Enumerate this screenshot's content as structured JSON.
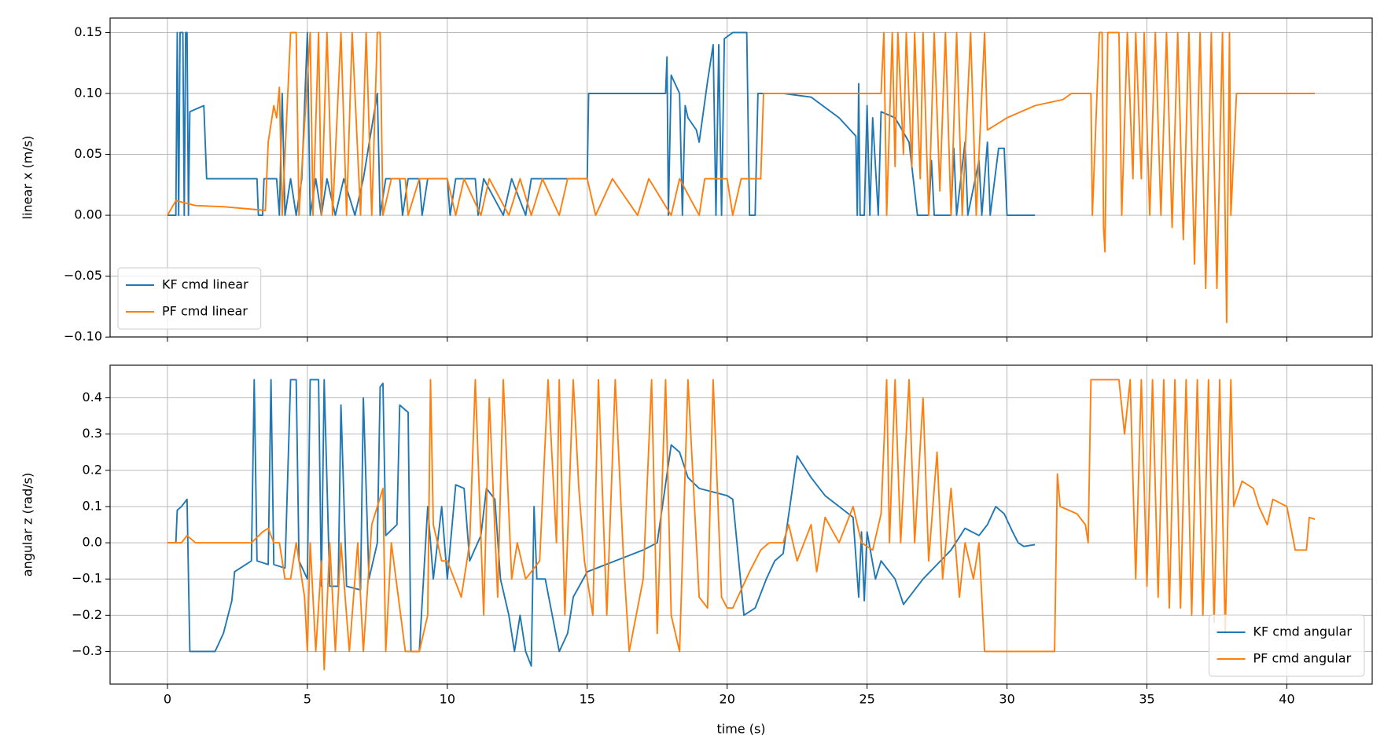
{
  "chart_data": [
    {
      "type": "line",
      "ylabel": "linear x (m/s)",
      "legend": "lower left",
      "grid": true,
      "xlim": [
        -2.05,
        43.05
      ],
      "xticks": [
        0,
        5,
        10,
        15,
        20,
        25,
        30,
        35,
        40
      ],
      "ylim": [
        -0.0999,
        0.1619
      ],
      "yticks": [
        {
          "value": -0.1,
          "label": "−0.10"
        },
        {
          "value": -0.05,
          "label": "−0.05"
        },
        {
          "value": 0,
          "label": "0.00"
        },
        0.05,
        {
          "value": 0.1,
          "label": "0.10"
        },
        0.15
      ],
      "series": [
        {
          "name": "KF cmd linear",
          "color": "#1f77b4",
          "x": [
            0,
            0.3,
            0.35,
            0.4,
            0.45,
            0.55,
            0.6,
            0.65,
            0.7,
            0.75,
            0.8,
            1.3,
            1.4,
            3.2,
            3.25,
            3.4,
            3.45,
            3.9,
            4.0,
            4.1,
            4.2,
            4.4,
            4.6,
            4.8,
            5.0,
            5.1,
            5.3,
            5.5,
            5.7,
            6.0,
            6.3,
            6.7,
            7.0,
            7.5,
            7.6,
            7.8,
            8.3,
            8.4,
            8.6,
            9.0,
            9.1,
            9.3,
            10.0,
            10.1,
            10.3,
            11.0,
            11.1,
            11.3,
            12.0,
            12.3,
            12.8,
            13.0,
            15.0,
            15.05,
            17.8,
            17.85,
            17.9,
            18.0,
            18.3,
            18.4,
            18.5,
            18.6,
            18.9,
            19.0,
            19.3,
            19.5,
            19.6,
            19.7,
            19.8,
            19.9,
            20.2,
            20.7,
            20.8,
            21.0,
            21.1,
            22.0,
            23.0,
            24.0,
            24.6,
            24.65,
            24.7,
            24.75,
            24.9,
            25.0,
            25.1,
            25.2,
            25.4,
            25.5,
            26.0,
            26.5,
            26.8,
            27.2,
            27.3,
            27.4,
            28.0,
            28.1,
            28.2,
            28.5,
            28.6,
            29.0,
            29.1,
            29.3,
            29.4,
            29.7,
            29.9,
            30.0,
            31.0
          ],
          "values": [
            0,
            0,
            0.15,
            0,
            0.15,
            0.15,
            0,
            0.15,
            0.15,
            0,
            0.085,
            0.09,
            0.03,
            0.03,
            0,
            0,
            0.03,
            0.03,
            0,
            0.1,
            0,
            0.03,
            0,
            0.03,
            0.15,
            0,
            0.03,
            0,
            0.03,
            0,
            0.03,
            0,
            0.03,
            0.1,
            0,
            0.03,
            0.03,
            0,
            0.03,
            0.03,
            0,
            0.03,
            0.03,
            0,
            0.03,
            0.03,
            0,
            0.03,
            0,
            0.03,
            0,
            0.03,
            0.03,
            0.1,
            0.1,
            0.13,
            0,
            0.115,
            0.1,
            0,
            0.09,
            0.08,
            0.07,
            0.06,
            0.11,
            0.14,
            0,
            0.14,
            0,
            0.145,
            0.15,
            0.15,
            0,
            0,
            0.1,
            0.1,
            0.097,
            0.08,
            0.065,
            0,
            0.108,
            0,
            0,
            0.09,
            0,
            0.08,
            0,
            0.085,
            0.08,
            0.06,
            0,
            0,
            0.045,
            0,
            0,
            0.055,
            0,
            0.06,
            0,
            0.045,
            0,
            0.06,
            0,
            0.055,
            0.055,
            0,
            0
          ]
        },
        {
          "name": "PF cmd linear",
          "color": "#ff7f0e",
          "x": [
            0,
            0.3,
            1,
            2,
            3.5,
            3.6,
            3.8,
            3.9,
            4.0,
            4.1,
            4.4,
            4.6,
            4.7,
            5.1,
            5.2,
            5.4,
            5.5,
            5.7,
            5.9,
            6.2,
            6.4,
            6.6,
            6.9,
            7.1,
            7.3,
            7.5,
            7.6,
            7.7,
            8.0,
            8.5,
            8.6,
            9.0,
            10.0,
            10.3,
            10.6,
            11.2,
            11.5,
            12.2,
            12.6,
            13.0,
            13.4,
            14.0,
            14.3,
            15.0,
            15.3,
            15.9,
            16.8,
            17.2,
            18.0,
            18.3,
            19.0,
            19.2,
            20.0,
            20.2,
            20.5,
            21.2,
            21.3,
            25.5,
            25.6,
            25.7,
            25.9,
            26.0,
            26.1,
            26.3,
            26.4,
            26.6,
            26.7,
            26.9,
            27.0,
            27.2,
            27.4,
            27.6,
            27.8,
            28.0,
            28.2,
            28.4,
            28.7,
            28.9,
            29.2,
            29.3,
            30,
            31,
            32,
            32.3,
            33.0,
            33.05,
            33.3,
            33.4,
            33.45,
            33.5,
            33.6,
            34.0,
            34.1,
            34.3,
            34.5,
            34.6,
            34.8,
            34.9,
            35.1,
            35.3,
            35.5,
            35.7,
            35.9,
            36.1,
            36.3,
            36.5,
            36.7,
            36.9,
            37.1,
            37.3,
            37.5,
            37.7,
            37.85,
            37.95,
            38.0,
            38.2,
            41.0
          ],
          "values": [
            0,
            0.012,
            0.008,
            0.007,
            0.004,
            0.06,
            0.09,
            0.08,
            0.105,
            0,
            0.15,
            0.15,
            0,
            0.15,
            0,
            0.15,
            0,
            0.15,
            0,
            0.15,
            0,
            0.15,
            0,
            0.15,
            0,
            0.15,
            0.15,
            0,
            0.03,
            0.03,
            0,
            0.03,
            0.03,
            0,
            0.03,
            0,
            0.03,
            0,
            0.03,
            0,
            0.03,
            0,
            0.03,
            0.03,
            0,
            0.03,
            0,
            0.03,
            0,
            0.03,
            0,
            0.03,
            0.03,
            0,
            0.03,
            0.03,
            0.1,
            0.1,
            0.15,
            0,
            0.15,
            0.04,
            0.15,
            0.05,
            0.15,
            0.04,
            0.15,
            0.03,
            0.15,
            0,
            0.15,
            0.02,
            0.15,
            0,
            0.15,
            0,
            0.15,
            0,
            0.15,
            0.07,
            0.08,
            0.09,
            0.095,
            0.1,
            0.1,
            0,
            0.15,
            0.15,
            -0.01,
            -0.03,
            0.15,
            0.15,
            0,
            0.15,
            0.03,
            0.15,
            0.03,
            0.15,
            0,
            0.15,
            0,
            0.15,
            -0.01,
            0.15,
            -0.02,
            0.15,
            -0.04,
            0.15,
            -0.06,
            0.15,
            -0.06,
            0.15,
            -0.088,
            0.15,
            0,
            0.1,
            0.1
          ]
        }
      ]
    },
    {
      "type": "line",
      "ylabel": "angular z (rad/s)",
      "xlabel": "time (s)",
      "legend": "lower right",
      "grid": true,
      "xlim": [
        -2.05,
        43.05
      ],
      "xticks": [
        0,
        5,
        10,
        15,
        20,
        25,
        30,
        35,
        40
      ],
      "ylim": [
        -0.39,
        0.49
      ],
      "yticks": [
        {
          "value": -0.3,
          "label": "−0.3"
        },
        {
          "value": -0.2,
          "label": "−0.2"
        },
        {
          "value": -0.1,
          "label": "−0.1"
        },
        {
          "value": 0,
          "label": "0.0"
        },
        0.1,
        0.2,
        0.3,
        0.4
      ],
      "series": [
        {
          "name": "KF cmd angular",
          "color": "#1f77b4",
          "x": [
            0,
            0.3,
            0.35,
            0.5,
            0.7,
            0.8,
            1.7,
            2.0,
            2.3,
            2.4,
            3.0,
            3.1,
            3.2,
            3.6,
            3.7,
            3.8,
            4.2,
            4.4,
            4.6,
            4.7,
            5.0,
            5.1,
            5.4,
            5.5,
            5.6,
            5.8,
            6.1,
            6.2,
            6.4,
            6.9,
            7.0,
            7.2,
            7.5,
            7.6,
            7.7,
            7.8,
            8.2,
            8.3,
            8.6,
            8.7,
            9.0,
            9.3,
            9.5,
            9.8,
            10.0,
            10.3,
            10.6,
            10.8,
            11.2,
            11.4,
            11.7,
            11.9,
            12.2,
            12.4,
            12.6,
            12.8,
            13.0,
            13.1,
            13.2,
            13.5,
            14.0,
            14.3,
            14.5,
            15.0,
            16.0,
            17.0,
            17.5,
            18.0,
            18.3,
            18.6,
            19.0,
            20.0,
            20.2,
            20.6,
            21.0,
            21.4,
            21.7,
            22.0,
            22.5,
            23.0,
            23.5,
            24.0,
            24.5,
            24.7,
            24.8,
            24.9,
            25.0,
            25.3,
            25.5,
            26.0,
            26.3,
            26.5,
            27.0,
            27.5,
            28.0,
            28.5,
            29.0,
            29.3,
            29.6,
            29.9,
            30.2,
            30.4,
            30.6,
            31.0
          ],
          "values": [
            0,
            0,
            0.09,
            0.1,
            0.12,
            -0.3,
            -0.3,
            -0.25,
            -0.16,
            -0.08,
            -0.05,
            0.45,
            -0.05,
            -0.06,
            0.45,
            -0.06,
            -0.07,
            0.45,
            0.45,
            -0.05,
            -0.1,
            0.45,
            0.45,
            -0.12,
            0.45,
            -0.12,
            -0.12,
            0.38,
            -0.12,
            -0.13,
            0.4,
            -0.1,
            0,
            0.43,
            0.44,
            0.02,
            0.05,
            0.38,
            0.36,
            -0.3,
            -0.3,
            0.1,
            -0.1,
            0.1,
            -0.1,
            0.16,
            0.15,
            -0.05,
            0.02,
            0.15,
            0.12,
            -0.1,
            -0.2,
            -0.3,
            -0.2,
            -0.3,
            -0.34,
            0.1,
            -0.1,
            -0.1,
            -0.3,
            -0.25,
            -0.15,
            -0.08,
            -0.05,
            -0.02,
            0,
            0.27,
            0.25,
            0.18,
            0.15,
            0.13,
            0.12,
            -0.2,
            -0.18,
            -0.1,
            -0.05,
            -0.03,
            0.24,
            0.18,
            0.13,
            0.1,
            0.07,
            -0.15,
            0.03,
            -0.16,
            0.03,
            -0.1,
            -0.05,
            -0.1,
            -0.17,
            -0.15,
            -0.1,
            -0.06,
            -0.02,
            0.04,
            0.02,
            0.05,
            0.1,
            0.08,
            0.03,
            0,
            -0.01,
            -0.005
          ]
        },
        {
          "name": "PF cmd angular",
          "color": "#ff7f0e",
          "x": [
            0,
            0.5,
            0.7,
            1.0,
            3.0,
            3.4,
            3.6,
            3.8,
            4.0,
            4.2,
            4.4,
            4.6,
            4.9,
            5.0,
            5.1,
            5.3,
            5.5,
            5.6,
            5.8,
            6.0,
            6.2,
            6.5,
            6.8,
            7.0,
            7.3,
            7.5,
            7.7,
            7.8,
            8.0,
            8.5,
            9.0,
            9.3,
            9.4,
            9.5,
            9.8,
            10.0,
            10.5,
            10.8,
            11.0,
            11.3,
            11.5,
            11.8,
            12.0,
            12.3,
            12.5,
            12.8,
            13.3,
            13.6,
            13.9,
            14.0,
            14.2,
            14.5,
            14.7,
            14.9,
            15.2,
            15.4,
            15.7,
            16.0,
            16.3,
            16.5,
            17.0,
            17.3,
            17.5,
            17.8,
            18.0,
            18.3,
            18.6,
            19.0,
            19.3,
            19.5,
            19.8,
            20.0,
            20.2,
            20.8,
            21.2,
            21.5,
            22.0,
            22.2,
            22.5,
            23.0,
            23.2,
            23.5,
            24.0,
            24.5,
            24.8,
            25.2,
            25.5,
            25.7,
            25.8,
            26.0,
            26.2,
            26.5,
            26.7,
            27.0,
            27.2,
            27.5,
            27.7,
            28.0,
            28.3,
            28.5,
            28.8,
            29.0,
            29.2,
            31.0,
            31.7,
            31.8,
            31.9,
            32.5,
            32.8,
            32.9,
            33.0,
            34.0,
            34.2,
            34.4,
            34.6,
            34.8,
            35.0,
            35.2,
            35.4,
            35.6,
            35.8,
            36.0,
            36.2,
            36.4,
            36.6,
            36.8,
            37.0,
            37.2,
            37.4,
            37.6,
            37.8,
            38.0,
            38.1,
            38.4,
            38.8,
            39.0,
            39.3,
            39.5,
            40.0,
            40.3,
            40.7,
            40.8,
            41.0
          ],
          "values": [
            0,
            0,
            0.02,
            0,
            0,
            0.03,
            0.04,
            0,
            0,
            -0.1,
            -0.1,
            0,
            -0.15,
            -0.3,
            0,
            -0.3,
            -0.05,
            -0.35,
            0,
            -0.3,
            0,
            -0.3,
            0,
            -0.3,
            0.05,
            0.1,
            0.15,
            -0.3,
            0,
            -0.3,
            -0.3,
            -0.2,
            0.45,
            0.05,
            -0.05,
            -0.05,
            -0.15,
            0,
            0.45,
            -0.2,
            0.4,
            -0.15,
            0.45,
            -0.1,
            0,
            -0.1,
            -0.05,
            0.45,
            0,
            0.45,
            -0.2,
            0.45,
            0.15,
            -0.05,
            -0.2,
            0.45,
            -0.2,
            0.45,
            -0.05,
            -0.3,
            -0.1,
            0.45,
            -0.25,
            0.45,
            -0.2,
            -0.3,
            0.45,
            -0.15,
            -0.18,
            0.45,
            -0.15,
            -0.18,
            -0.18,
            -0.08,
            -0.02,
            0,
            0,
            0.05,
            -0.05,
            0.05,
            -0.08,
            0.07,
            0,
            0.1,
            0,
            -0.02,
            0.08,
            0.45,
            0,
            0.45,
            0,
            0.45,
            0,
            0.4,
            -0.05,
            0.25,
            -0.1,
            0.15,
            -0.15,
            0,
            -0.1,
            0,
            -0.3,
            -0.3,
            -0.3,
            0.19,
            0.1,
            0.08,
            0.05,
            0,
            0.45,
            0.45,
            0.3,
            0.45,
            -0.1,
            0.45,
            -0.12,
            0.45,
            -0.15,
            0.45,
            -0.18,
            0.45,
            -0.18,
            0.45,
            -0.2,
            0.45,
            -0.2,
            0.45,
            -0.22,
            0.45,
            -0.25,
            0.45,
            0.1,
            0.17,
            0.15,
            0.1,
            0.05,
            0.12,
            0.1,
            -0.02,
            -0.02,
            0.07,
            0.065
          ]
        }
      ]
    }
  ]
}
